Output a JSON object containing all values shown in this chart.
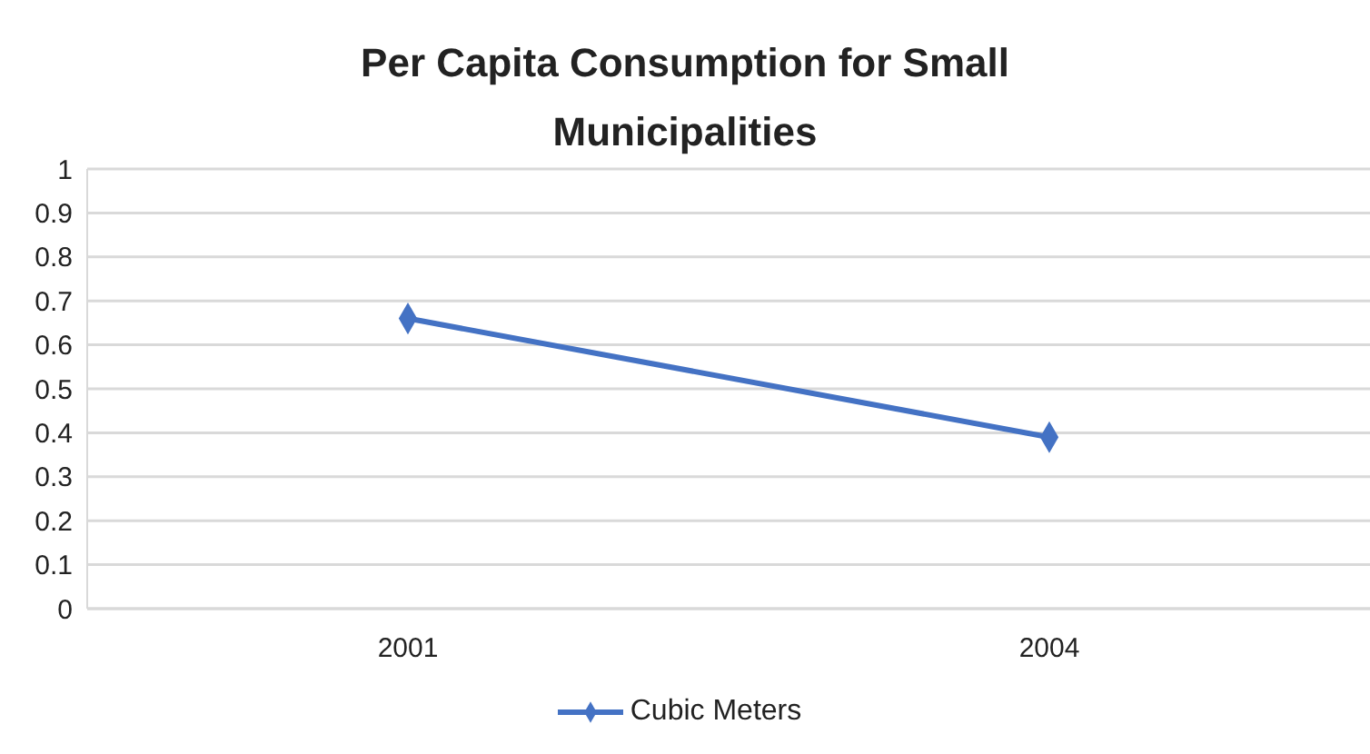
{
  "chart_data": {
    "type": "line",
    "title": "Per Capita Consumption for Small Municipalities",
    "categories": [
      "2001",
      "2004"
    ],
    "series": [
      {
        "name": "Cubic Meters",
        "color": "#4472c4",
        "values": [
          0.66,
          0.39
        ]
      }
    ],
    "ylim": [
      0,
      1
    ],
    "yticks": [
      0,
      0.1,
      0.2,
      0.3,
      0.4,
      0.5,
      0.6,
      0.7,
      0.8,
      0.9,
      1
    ],
    "grid": "y",
    "legend": "bottom",
    "marker": "diamond",
    "line_style": "solid"
  }
}
